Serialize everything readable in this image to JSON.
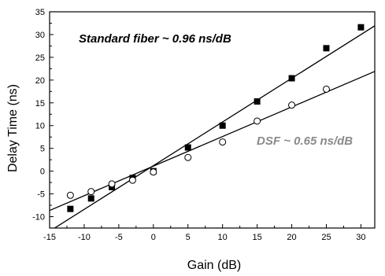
{
  "chart_data": {
    "type": "scatter",
    "xlabel": "Gain (dB)",
    "ylabel": "Delay Time (ns)",
    "xlim": [
      -15,
      32
    ],
    "ylim": [
      -12.5,
      35
    ],
    "xticks": [
      -15,
      -10,
      -5,
      0,
      5,
      10,
      15,
      20,
      25,
      30
    ],
    "yticks": [
      -10,
      -5,
      0,
      5,
      10,
      15,
      20,
      25,
      30,
      35
    ],
    "grid": false,
    "series": [
      {
        "marker": "filled-square",
        "color": "#000000",
        "x": [
          -12,
          -9,
          -6,
          -3,
          0,
          5,
          10,
          15,
          20,
          25,
          30
        ],
        "y": [
          -8.3,
          -6.0,
          -3.5,
          -1.5,
          0,
          5.2,
          10.0,
          15.3,
          20.4,
          27.0,
          31.6
        ]
      },
      {
        "marker": "open-circle",
        "color": "#000000",
        "x": [
          -12,
          -9,
          -6,
          -3,
          0,
          5,
          10,
          15,
          20,
          25
        ],
        "y": [
          -5.3,
          -4.5,
          -2.8,
          -2.0,
          -0.2,
          3.0,
          6.4,
          11.0,
          14.5,
          18.0
        ]
      }
    ],
    "fit_lines": [
      {
        "slope": 0.96,
        "intercept": 1.2,
        "color": "#000000"
      },
      {
        "slope": 0.65,
        "intercept": 1.1,
        "color": "#000000"
      }
    ],
    "annotations": [
      {
        "text": "Standard fiber ~ 0.96 ns/dB",
        "color": "#000000"
      },
      {
        "text": "DSF ~ 0.65 ns/dB",
        "color": "#8a8a8a"
      }
    ]
  }
}
